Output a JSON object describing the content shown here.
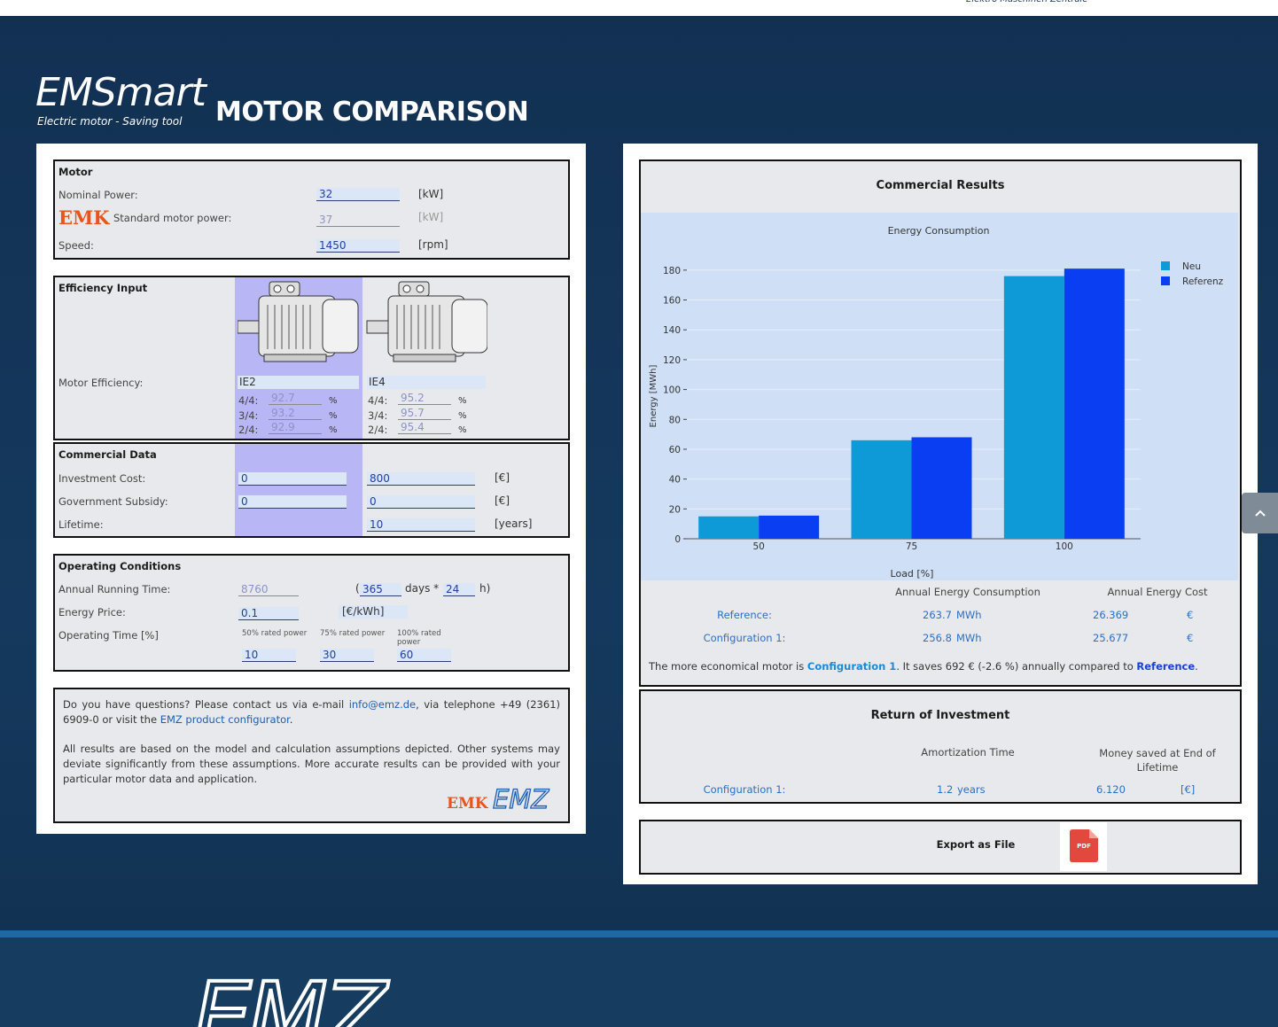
{
  "header": {
    "brand_tagline": "Elektro Maschinen Zentrale"
  },
  "hero": {
    "logo": "EMSmart",
    "logo_subtitle": "Electric motor - Saving tool",
    "title": "MOTOR COMPARISON"
  },
  "motor": {
    "heading": "Motor",
    "nominal_power_label": "Nominal Power:",
    "nominal_power": "32",
    "nominal_power_unit": "[kW]",
    "emk_logo": "EMK",
    "standard_power_label": "Standard motor power:",
    "standard_power": "37",
    "standard_power_unit": "[kW]",
    "speed_label": "Speed:",
    "speed": "1450",
    "speed_unit": "[rpm]"
  },
  "efficiency": {
    "heading": "Efficiency Input",
    "label": "Motor Efficiency:",
    "motors": [
      {
        "class": "IE2",
        "rows": [
          {
            "load": "4/4:",
            "value": "92.7",
            "unit": "%"
          },
          {
            "load": "3/4:",
            "value": "93.2",
            "unit": "%"
          },
          {
            "load": "2/4:",
            "value": "92.9",
            "unit": "%"
          }
        ]
      },
      {
        "class": "IE4",
        "rows": [
          {
            "load": "4/4:",
            "value": "95.2",
            "unit": "%"
          },
          {
            "load": "3/4:",
            "value": "95.7",
            "unit": "%"
          },
          {
            "load": "2/4:",
            "value": "95.4",
            "unit": "%"
          }
        ]
      }
    ]
  },
  "commercial": {
    "heading": "Commercial Data",
    "rows": [
      {
        "label": "Investment Cost:",
        "values": [
          "0",
          "800"
        ],
        "unit": "[€]"
      },
      {
        "label": "Government Subsidy:",
        "values": [
          "0",
          "0"
        ],
        "unit": "[€]"
      },
      {
        "label": "Lifetime:",
        "values": [
          "10"
        ],
        "unit": "[years]"
      }
    ]
  },
  "operating": {
    "heading": "Operating Conditions",
    "running_label": "Annual Running Time:",
    "running_hours": "8760",
    "paren_open": "(",
    "days": "365",
    "days_unit": "days *",
    "hours": "24",
    "hours_unit": "h)",
    "price_label": "Energy Price:",
    "price": "0.1",
    "price_unit": "[€/kWh]",
    "time_label": "Operating Time [%]",
    "shares": [
      {
        "label": "50% rated power",
        "value": "10"
      },
      {
        "label": "75% rated power",
        "value": "30"
      },
      {
        "label": "100% rated power",
        "value": "60"
      }
    ]
  },
  "contact": {
    "p1": [
      "Do you have questions? Please contact us via e-mail ",
      "info@emz.de",
      ", via telephone +49 (2361) 6909-0 or visit the ",
      "EMZ product configurator",
      "."
    ],
    "p2": "All results are based on the model and calculation assumptions depicted. Other systems may deviate significantly from these assumptions. More accurate results can be provided with your particular motor data and application.",
    "logos": [
      "EMK",
      "EMZ"
    ]
  },
  "results": {
    "heading": "Commercial Results",
    "columns": [
      "Annual Energy Consumption",
      "Annual Energy Cost"
    ],
    "rows": [
      {
        "label": "Reference:",
        "energy": "263.7",
        "energy_unit": "MWh",
        "cost": "26.369",
        "cost_unit": "€"
      },
      {
        "label": "Configuration 1:",
        "energy": "256.8",
        "energy_unit": "MWh",
        "cost": "25.677",
        "cost_unit": "€"
      }
    ],
    "summary": [
      "The more economical motor is ",
      "Configuration 1",
      ". It saves 692 € (-2.6 %) annually compared to ",
      "Reference",
      "."
    ]
  },
  "roi": {
    "heading": "Return of Investment",
    "columns": [
      "Amortization Time",
      "Money saved at End of Lifetime"
    ],
    "row": {
      "label": "Configuration 1:",
      "time": "1.2",
      "time_unit": "years",
      "money": "6.120",
      "money_unit": "[€]"
    }
  },
  "export": {
    "label": "Export as File",
    "icon": "PDF"
  },
  "footer": {
    "logo": "EMZ"
  },
  "chart_data": {
    "type": "bar",
    "title": "Energy Consumption",
    "x_label": "Load [%]",
    "y_label": "Energy [MWh]",
    "categories": [
      "50",
      "75",
      "100"
    ],
    "series": [
      {
        "name": "Neu",
        "color": "#0e9ad6",
        "values": [
          15,
          66,
          176
        ]
      },
      {
        "name": "Referenz",
        "color": "#0a3ef2",
        "values": [
          15.5,
          68,
          181
        ]
      }
    ],
    "ylim": [
      0,
      190
    ],
    "yticks": [
      0,
      20,
      40,
      60,
      80,
      100,
      120,
      140,
      160,
      180
    ],
    "grid": true,
    "legend": "top-right"
  }
}
